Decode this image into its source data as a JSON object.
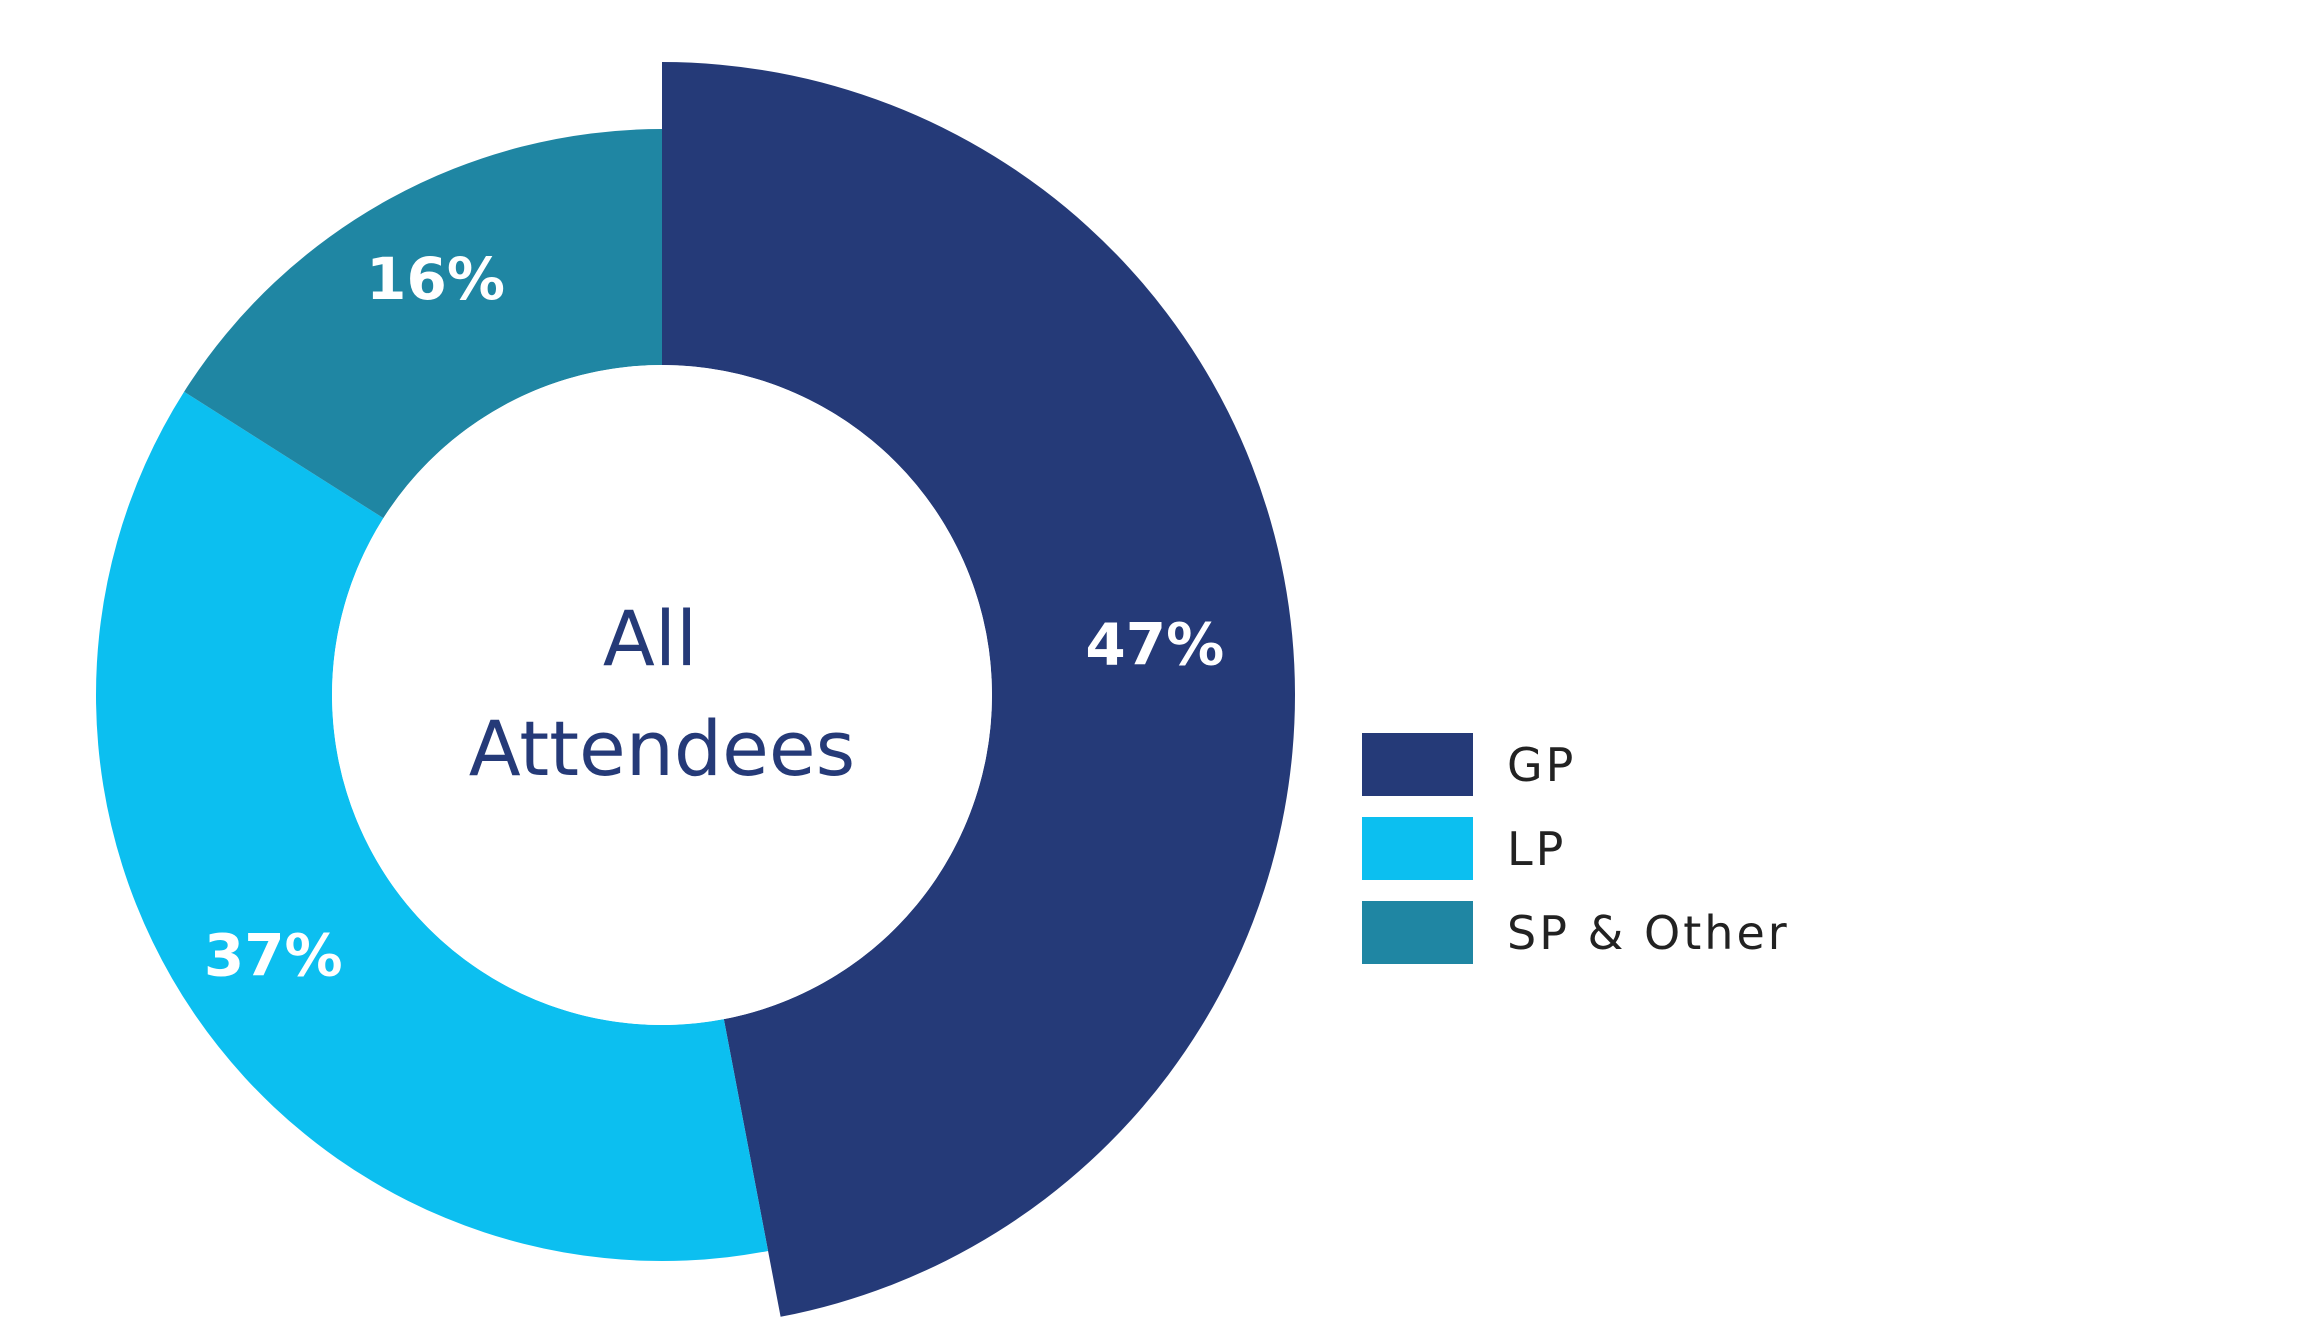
{
  "chart_data": {
    "type": "pie",
    "variant": "donut",
    "center_label": [
      "All",
      "Attendees"
    ],
    "slices": [
      {
        "name": "GP",
        "value": 47,
        "label": "47%",
        "color": "#253a78"
      },
      {
        "name": "LP",
        "value": 37,
        "label": "37%",
        "color": "#0cbff0"
      },
      {
        "name": "SP & Other",
        "value": 16,
        "label": "16%",
        "color": "#1f86a3"
      }
    ],
    "legend_position": "right"
  }
}
